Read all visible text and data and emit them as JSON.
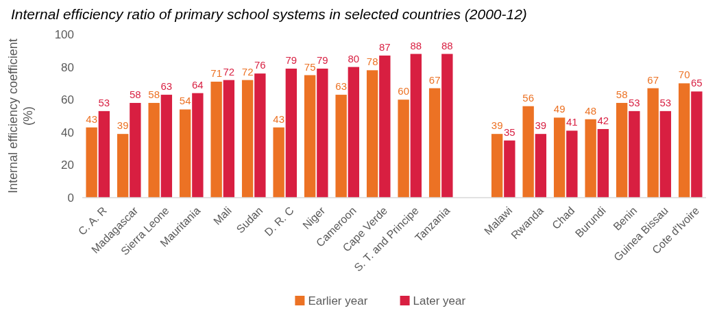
{
  "chart_data": {
    "type": "bar",
    "title": "Internal efficiency ratio of primary school systems in selected countries (2000-12)",
    "ylabel": "Internal efficiency coefficient (%)",
    "categories": [
      "C. A. R",
      "Madagascar",
      "Sierra Leone",
      "Mauritania",
      "Mali",
      "Sudan",
      "D. R. C",
      "Niger",
      "Cameroon",
      "Cape Verde",
      "S. T. and Principe",
      "Tanzania",
      null,
      "Malawi",
      "Rwanda",
      "Chad",
      "Burundi",
      "Benin",
      "Guinea Bissau",
      "Cote d'Ivoire"
    ],
    "series": [
      {
        "name": "Earlier year",
        "color": "#ec7224",
        "values": [
          43,
          39,
          58,
          54,
          71,
          72,
          43,
          75,
          63,
          78,
          60,
          67,
          null,
          39,
          56,
          49,
          48,
          58,
          67,
          70
        ]
      },
      {
        "name": "Later year",
        "color": "#d81f41",
        "values": [
          53,
          58,
          63,
          64,
          72,
          76,
          79,
          79,
          80,
          87,
          88,
          88,
          null,
          35,
          39,
          41,
          42,
          53,
          53,
          65
        ]
      }
    ],
    "ylim": [
      0,
      100
    ],
    "yticks": [
      0,
      20,
      40,
      60,
      80,
      100
    ],
    "legend": "bottom",
    "data_labels": true
  }
}
